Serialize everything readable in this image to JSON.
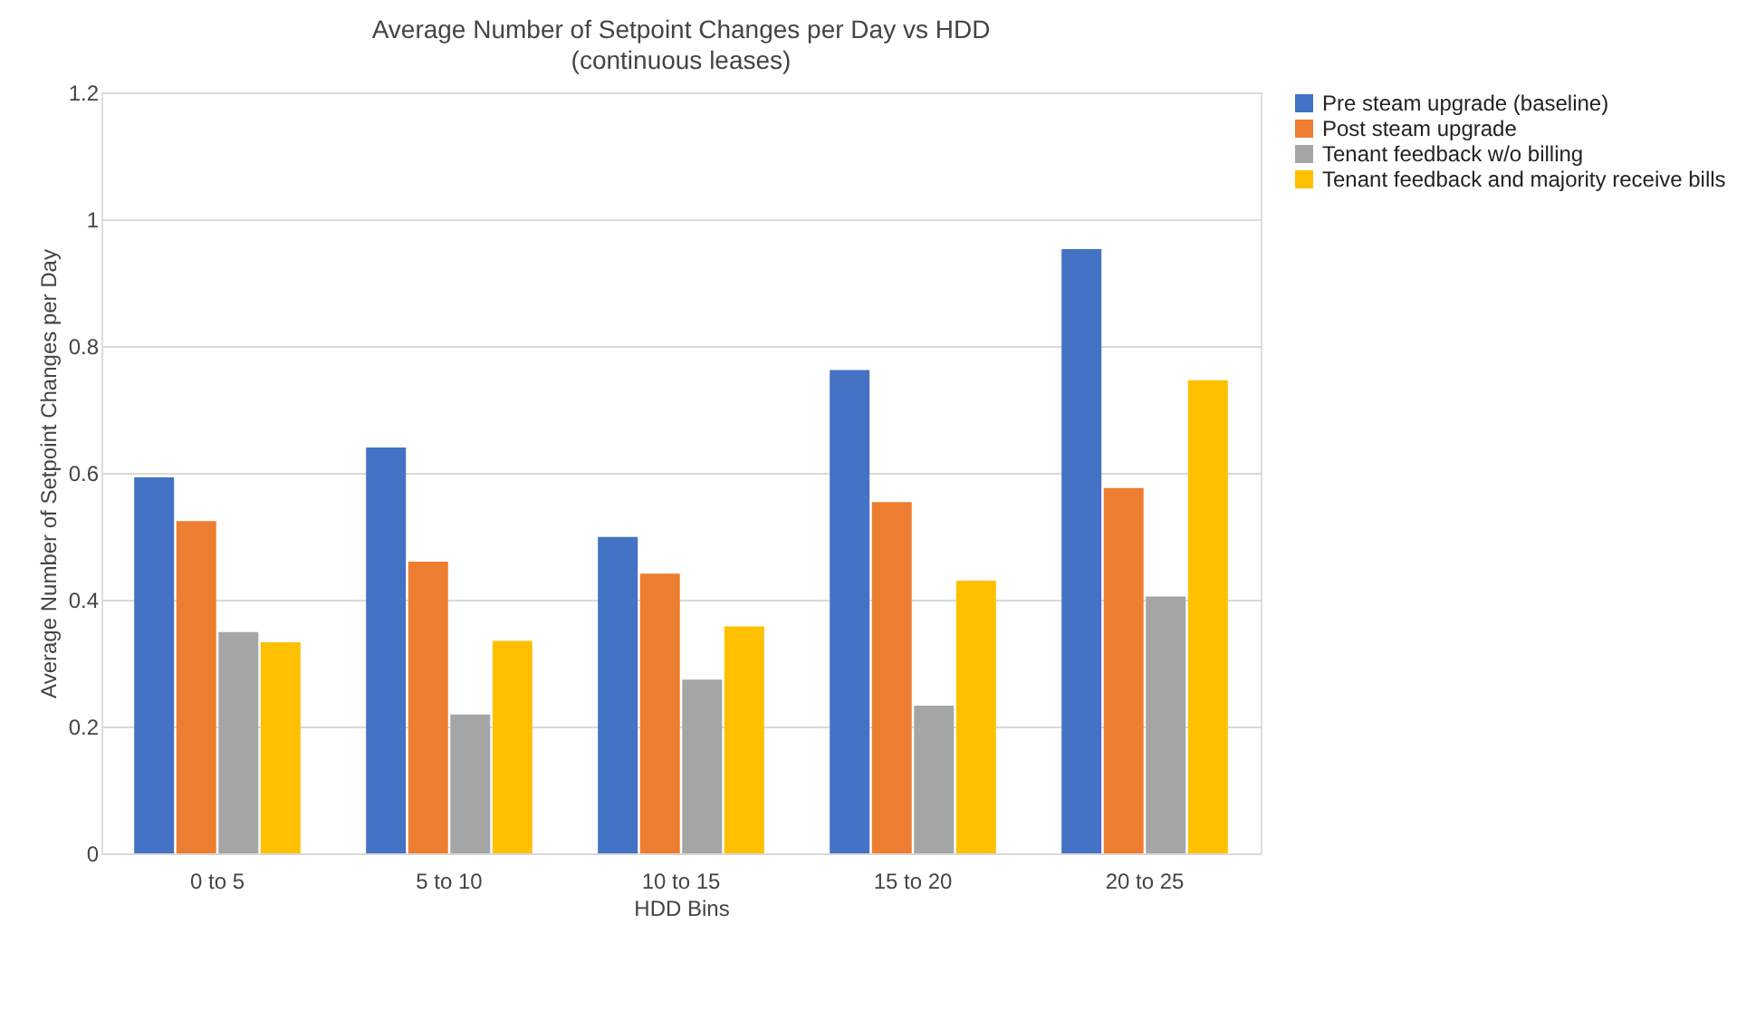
{
  "chart_data": {
    "type": "bar",
    "title": "Average Number of Setpoint Changes per Day vs HDD",
    "subtitle": "(continuous leases)",
    "xlabel": "HDD Bins",
    "ylabel": "Average Number of Setpoint Changes per Day",
    "categories": [
      "0 to 5",
      "5 to 10",
      "10 to 15",
      "15 to 20",
      "20 to 25"
    ],
    "series": [
      {
        "name": "Pre steam upgrade (baseline)",
        "color": "#4472c4",
        "values": [
          0.593,
          0.64,
          0.499,
          0.762,
          0.953
        ]
      },
      {
        "name": "Post steam upgrade",
        "color": "#ed7d31",
        "values": [
          0.524,
          0.46,
          0.441,
          0.554,
          0.576
        ]
      },
      {
        "name": "Tenant feedback w/o billing",
        "color": "#a5a5a5",
        "values": [
          0.349,
          0.219,
          0.274,
          0.233,
          0.405
        ]
      },
      {
        "name": "Tenant feedback and majority receive bills",
        "color": "#ffc000",
        "values": [
          0.333,
          0.335,
          0.358,
          0.43,
          0.746
        ]
      }
    ],
    "ylim": [
      0,
      1.2
    ],
    "yticks": [
      0,
      0.2,
      0.4,
      0.6,
      0.8,
      1,
      1.2
    ],
    "grid": "y",
    "legend": "right"
  }
}
